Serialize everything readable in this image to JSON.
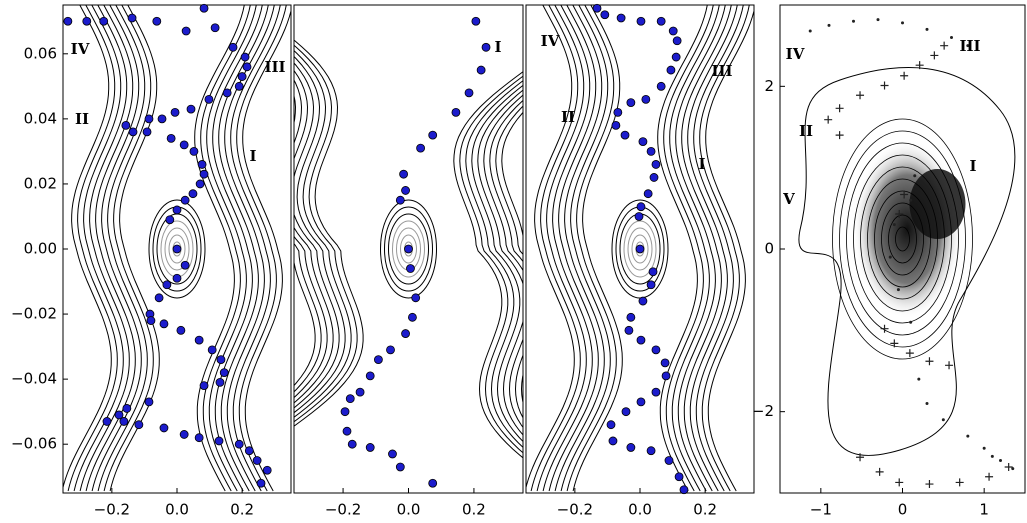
{
  "chart_data": [
    {
      "type": "scatter",
      "xlim": [
        -0.35,
        0.35
      ],
      "ylim": [
        -0.075,
        0.075
      ],
      "xticks": [
        {
          "value": -0.2,
          "label": "−0.2"
        },
        {
          "value": 0,
          "label": "0.0"
        },
        0.2
      ],
      "yticks": [
        {
          "value": -0.06,
          "label": "−0.06"
        },
        {
          "value": -0.04,
          "label": "−0.04"
        },
        {
          "value": -0.02,
          "label": "−0.02"
        },
        {
          "value": 0,
          "label": "0.00"
        },
        0.02,
        0.04,
        0.06
      ],
      "annotations": [
        "IV",
        "III",
        "II",
        "I"
      ],
      "series": [
        {
          "color": "#1c1ccc",
          "marker": "o",
          "x": [
            -0.335,
            -0.277,
            -0.225,
            -0.138,
            -0.062,
            0.028,
            0.083,
            0.117,
            0.172,
            0.209,
            0.215,
            0.2,
            0.191,
            0.154,
            0.098,
            0.043,
            -0.006,
            -0.046,
            -0.086,
            -0.157,
            -0.135,
            -0.092,
            -0.018,
            0.022,
            0.052,
            0.077,
            0.083,
            0.071,
            0.049,
            0.025,
            0,
            -0.022,
            0,
            0.025,
            0,
            -0.031,
            -0.055,
            -0.083,
            -0.08,
            -0.04,
            0.012,
            0.068,
            0.108,
            0.135,
            0.145,
            0.132,
            0.083,
            -0.086,
            -0.154,
            -0.178,
            -0.215,
            -0.163,
            -0.117,
            -0.04,
            0.022,
            0.068,
            0.129,
            0.191,
            0.222,
            0.246,
            0.277,
            0.258
          ],
          "values": [
            0.07,
            0.07,
            0.07,
            0.071,
            0.07,
            0.067,
            0.074,
            0.068,
            0.062,
            0.059,
            0.056,
            0.053,
            0.05,
            0.048,
            0.046,
            0.043,
            0.042,
            0.04,
            0.04,
            0.038,
            0.036,
            0.036,
            0.034,
            0.032,
            0.03,
            0.026,
            0.023,
            0.02,
            0.017,
            0.015,
            0.012,
            0.009,
            0,
            -0.005,
            -0.009,
            -0.011,
            -0.015,
            -0.02,
            -0.022,
            -0.023,
            -0.025,
            -0.028,
            -0.031,
            -0.034,
            -0.038,
            -0.041,
            -0.042,
            -0.047,
            -0.049,
            -0.051,
            -0.053,
            -0.053,
            -0.054,
            -0.055,
            -0.057,
            -0.058,
            -0.059,
            -0.06,
            -0.062,
            -0.065,
            -0.068,
            -0.072
          ]
        }
      ]
    },
    {
      "type": "scatter",
      "xlim": [
        -0.35,
        0.35
      ],
      "ylim": [
        -0.075,
        0.075
      ],
      "xticks": [
        {
          "value": -0.2,
          "label": "−0.2"
        },
        {
          "value": 0,
          "label": "0.0"
        },
        0.2
      ],
      "annotations": [
        "I"
      ],
      "series": [
        {
          "color": "#1c1ccc",
          "marker": "o",
          "x": [
            0.206,
            0.237,
            0.222,
            0.185,
            0.145,
            0.074,
            0.037,
            -0.015,
            -0.009,
            -0.025,
            0,
            0.006,
            0.022,
            0.012,
            -0.009,
            -0.055,
            -0.092,
            -0.117,
            -0.148,
            -0.178,
            -0.194,
            -0.188,
            -0.172,
            -0.117,
            -0.049,
            -0.025,
            0.074
          ],
          "values": [
            0.07,
            0.062,
            0.055,
            0.048,
            0.042,
            0.035,
            0.031,
            0.023,
            0.018,
            0.015,
            0,
            -0.006,
            -0.015,
            -0.021,
            -0.026,
            -0.031,
            -0.034,
            -0.039,
            -0.044,
            -0.046,
            -0.05,
            -0.056,
            -0.06,
            -0.061,
            -0.063,
            -0.067,
            -0.072
          ]
        }
      ]
    },
    {
      "type": "scatter",
      "xlim": [
        -0.35,
        0.35
      ],
      "ylim": [
        -0.075,
        0.075
      ],
      "xticks": [
        {
          "value": -0.2,
          "label": "−0.2"
        },
        {
          "value": 0,
          "label": "0.0"
        },
        0.2
      ],
      "annotations": [
        "IV",
        "III",
        "II",
        "I"
      ],
      "series": [
        {
          "color": "#1c1ccc",
          "marker": "o",
          "x": [
            -0.132,
            -0.108,
            -0.058,
            0.003,
            0.065,
            0.102,
            0.114,
            0.111,
            0.095,
            0.065,
            0.018,
            -0.028,
            -0.068,
            -0.074,
            -0.046,
            0.009,
            0.034,
            0.049,
            0.043,
            0.025,
            0.003,
            -0.003,
            0,
            0.04,
            0.034,
            0.009,
            -0.028,
            -0.034,
            0.003,
            0.049,
            0.077,
            0.08,
            0.049,
            0.003,
            -0.043,
            -0.089,
            -0.083,
            -0.028,
            0.034,
            0.089,
            0.12,
            0.135
          ],
          "values": [
            0.074,
            0.072,
            0.071,
            0.07,
            0.07,
            0.067,
            0.064,
            0.059,
            0.055,
            0.05,
            0.046,
            0.045,
            0.042,
            0.038,
            0.035,
            0.033,
            0.03,
            0.026,
            0.022,
            0.017,
            0.013,
            0.01,
            0,
            -0.007,
            -0.011,
            -0.016,
            -0.021,
            -0.025,
            -0.028,
            -0.031,
            -0.035,
            -0.039,
            -0.044,
            -0.047,
            -0.05,
            -0.054,
            -0.059,
            -0.061,
            -0.062,
            -0.065,
            -0.07,
            -0.074
          ]
        }
      ]
    },
    {
      "type": "scatter",
      "xlim": [
        -1.5,
        1.5
      ],
      "ylim": [
        -3,
        3
      ],
      "xticks": [
        {
          "value": -1,
          "label": "−1"
        },
        0,
        1
      ],
      "yticks": [
        {
          "value": -2,
          "label": "−2"
        },
        0,
        2
      ],
      "annotations": [
        "IV",
        "III",
        "II",
        "I",
        "V"
      ],
      "series": [
        {
          "color": "#222222",
          "marker": "+",
          "x": [
            0.51,
            0.39,
            0.21,
            0.02,
            -0.22,
            -0.52,
            -0.77,
            -0.91,
            -0.77,
            0.02,
            -0.04,
            -0.22,
            -0.1,
            0.09,
            0.33,
            0.57,
            -0.52,
            -0.28,
            -0.04,
            0.33,
            0.7,
            1.06,
            1.3
          ],
          "values": [
            2.5,
            2.38,
            2.26,
            2.13,
            2.01,
            1.89,
            1.73,
            1.59,
            1.4,
            0.67,
            0.43,
            -0.98,
            -1.16,
            -1.28,
            -1.38,
            -1.43,
            -2.56,
            -2.74,
            -2.87,
            -2.89,
            -2.87,
            -2.8,
            -2.68
          ]
        },
        {
          "color": "#222222",
          "marker": ".",
          "x": [
            -1.13,
            -0.9,
            -0.6,
            -0.3,
            0.0,
            0.3,
            0.6,
            0.8,
            0.15,
            0.1,
            -0.1,
            -0.15,
            -0.05,
            0.1,
            0.2,
            0.3,
            0.5,
            0.8,
            1.0,
            1.1,
            1.2,
            1.35
          ],
          "values": [
            2.68,
            2.75,
            2.8,
            2.82,
            2.78,
            2.7,
            2.6,
            2.5,
            0.9,
            0.6,
            0.3,
            -0.1,
            -0.5,
            -0.9,
            -1.6,
            -1.9,
            -2.1,
            -2.3,
            -2.45,
            -2.55,
            -2.6,
            -2.7
          ]
        }
      ]
    }
  ]
}
